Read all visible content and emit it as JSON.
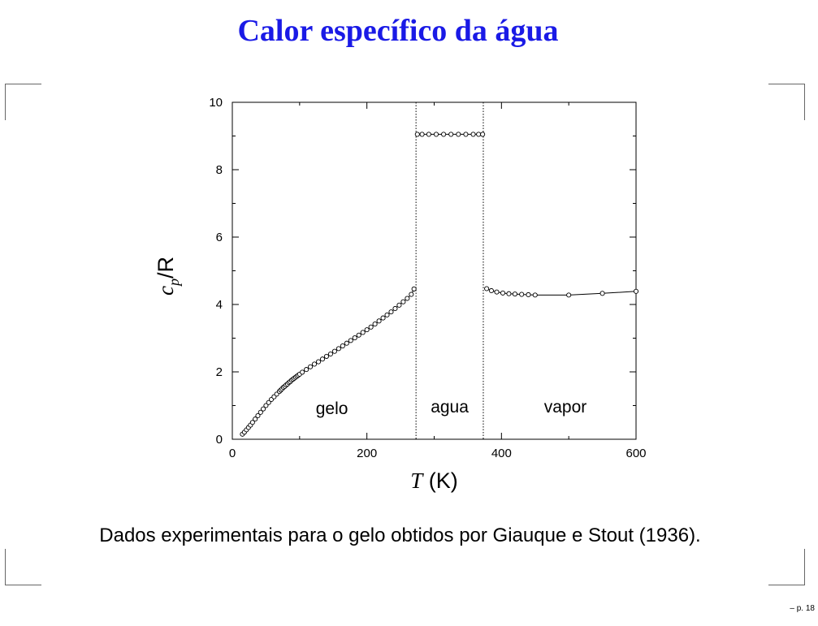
{
  "slide": {
    "title": "Calor específico da água",
    "caption": "Dados experimentais para o gelo obtidos por Giauque e Stout (1936).",
    "page_number": "– p. 18"
  },
  "colors": {
    "title": "#1a1ae6",
    "text": "#000000"
  },
  "chart_data": {
    "type": "line",
    "xlabel": {
      "italic": "T",
      "rest": " (K)"
    },
    "ylabel": {
      "c": "c",
      "sub": "p",
      "rest": "/R"
    },
    "xlim": [
      0,
      600
    ],
    "ylim": [
      0,
      10
    ],
    "xticks": [
      0,
      200,
      400,
      600
    ],
    "yticks": [
      0,
      2,
      4,
      6,
      8,
      10
    ],
    "grid": false,
    "phase_boundaries": [
      273,
      373
    ],
    "region_labels": [
      {
        "text": "gelo",
        "x": 148,
        "y": 0.75
      },
      {
        "text": "agua",
        "x": 323,
        "y": 0.8
      },
      {
        "text": "vapor",
        "x": 495,
        "y": 0.8
      }
    ],
    "series": [
      {
        "x": [
          15,
          18,
          21,
          24,
          27,
          30,
          34,
          38,
          42,
          46,
          50,
          54,
          58,
          62,
          66,
          70,
          72,
          74,
          76,
          78,
          80,
          82,
          84,
          86,
          88,
          90,
          92,
          94,
          96,
          98,
          100,
          104,
          110,
          116,
          122,
          128,
          134,
          140,
          146,
          152,
          158,
          164,
          170,
          176,
          182,
          188,
          194,
          200,
          206,
          212,
          218,
          224,
          230,
          236,
          242,
          248,
          254,
          260,
          266,
          270
        ],
        "y": [
          0.15,
          0.21,
          0.28,
          0.35,
          0.42,
          0.5,
          0.6,
          0.7,
          0.8,
          0.9,
          1.0,
          1.09,
          1.18,
          1.26,
          1.34,
          1.42,
          1.46,
          1.5,
          1.54,
          1.57,
          1.61,
          1.64,
          1.68,
          1.71,
          1.75,
          1.78,
          1.81,
          1.84,
          1.87,
          1.9,
          1.93,
          1.99,
          2.07,
          2.15,
          2.23,
          2.3,
          2.38,
          2.46,
          2.53,
          2.61,
          2.69,
          2.77,
          2.85,
          2.93,
          3.01,
          3.09,
          3.17,
          3.25,
          3.33,
          3.42,
          3.51,
          3.6,
          3.69,
          3.78,
          3.88,
          3.98,
          4.08,
          4.18,
          4.3,
          4.46
        ]
      },
      {
        "x": [
          275,
          282,
          292,
          303,
          314,
          325,
          336,
          347,
          358,
          366,
          372
        ],
        "y": [
          9.05,
          9.05,
          9.05,
          9.05,
          9.05,
          9.05,
          9.05,
          9.05,
          9.05,
          9.05,
          9.05
        ]
      },
      {
        "x": [
          378,
          385,
          393,
          402,
          411,
          420,
          430,
          440,
          450,
          500,
          550,
          600
        ],
        "y": [
          4.47,
          4.41,
          4.37,
          4.34,
          4.32,
          4.31,
          4.3,
          4.29,
          4.28,
          4.28,
          4.33,
          4.39
        ]
      }
    ]
  }
}
